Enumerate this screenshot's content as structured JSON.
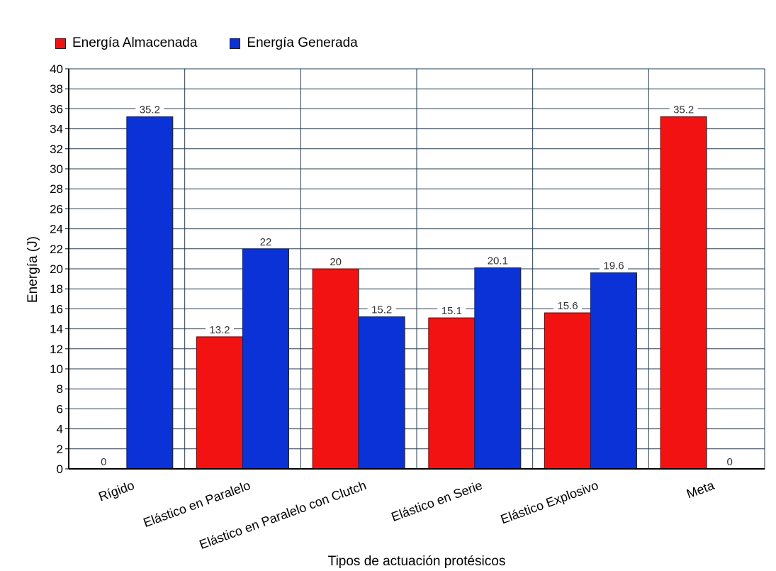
{
  "chart_data": {
    "type": "bar",
    "categories": [
      "Rígido",
      "Elástico en Paralelo",
      "Elástico en Paralelo con Clutch",
      "Elástico en Serie",
      "Elástico Explosivo",
      "Meta"
    ],
    "series": [
      {
        "name": "Energía Almacenada",
        "color": "#f21212",
        "values": [
          0,
          13.2,
          20,
          15.1,
          15.6,
          35.2
        ],
        "labels": [
          "0",
          "13.2",
          "20",
          "15.1",
          "15.6",
          "35.2"
        ]
      },
      {
        "name": "Energía Generada",
        "color": "#0a32d6",
        "values": [
          35.2,
          22,
          15.2,
          20.1,
          19.6,
          0
        ],
        "labels": [
          "35.2",
          "22",
          "15.2",
          "20.1",
          "19.6",
          "0"
        ]
      }
    ],
    "xlabel": "Tipos de actuación protésicos",
    "ylabel": "Energía (J)",
    "ylim": [
      0,
      40
    ],
    "ytick_step": 2,
    "grid": true,
    "gridline_color": "#1e3c5a",
    "legend_position": "top-left"
  }
}
